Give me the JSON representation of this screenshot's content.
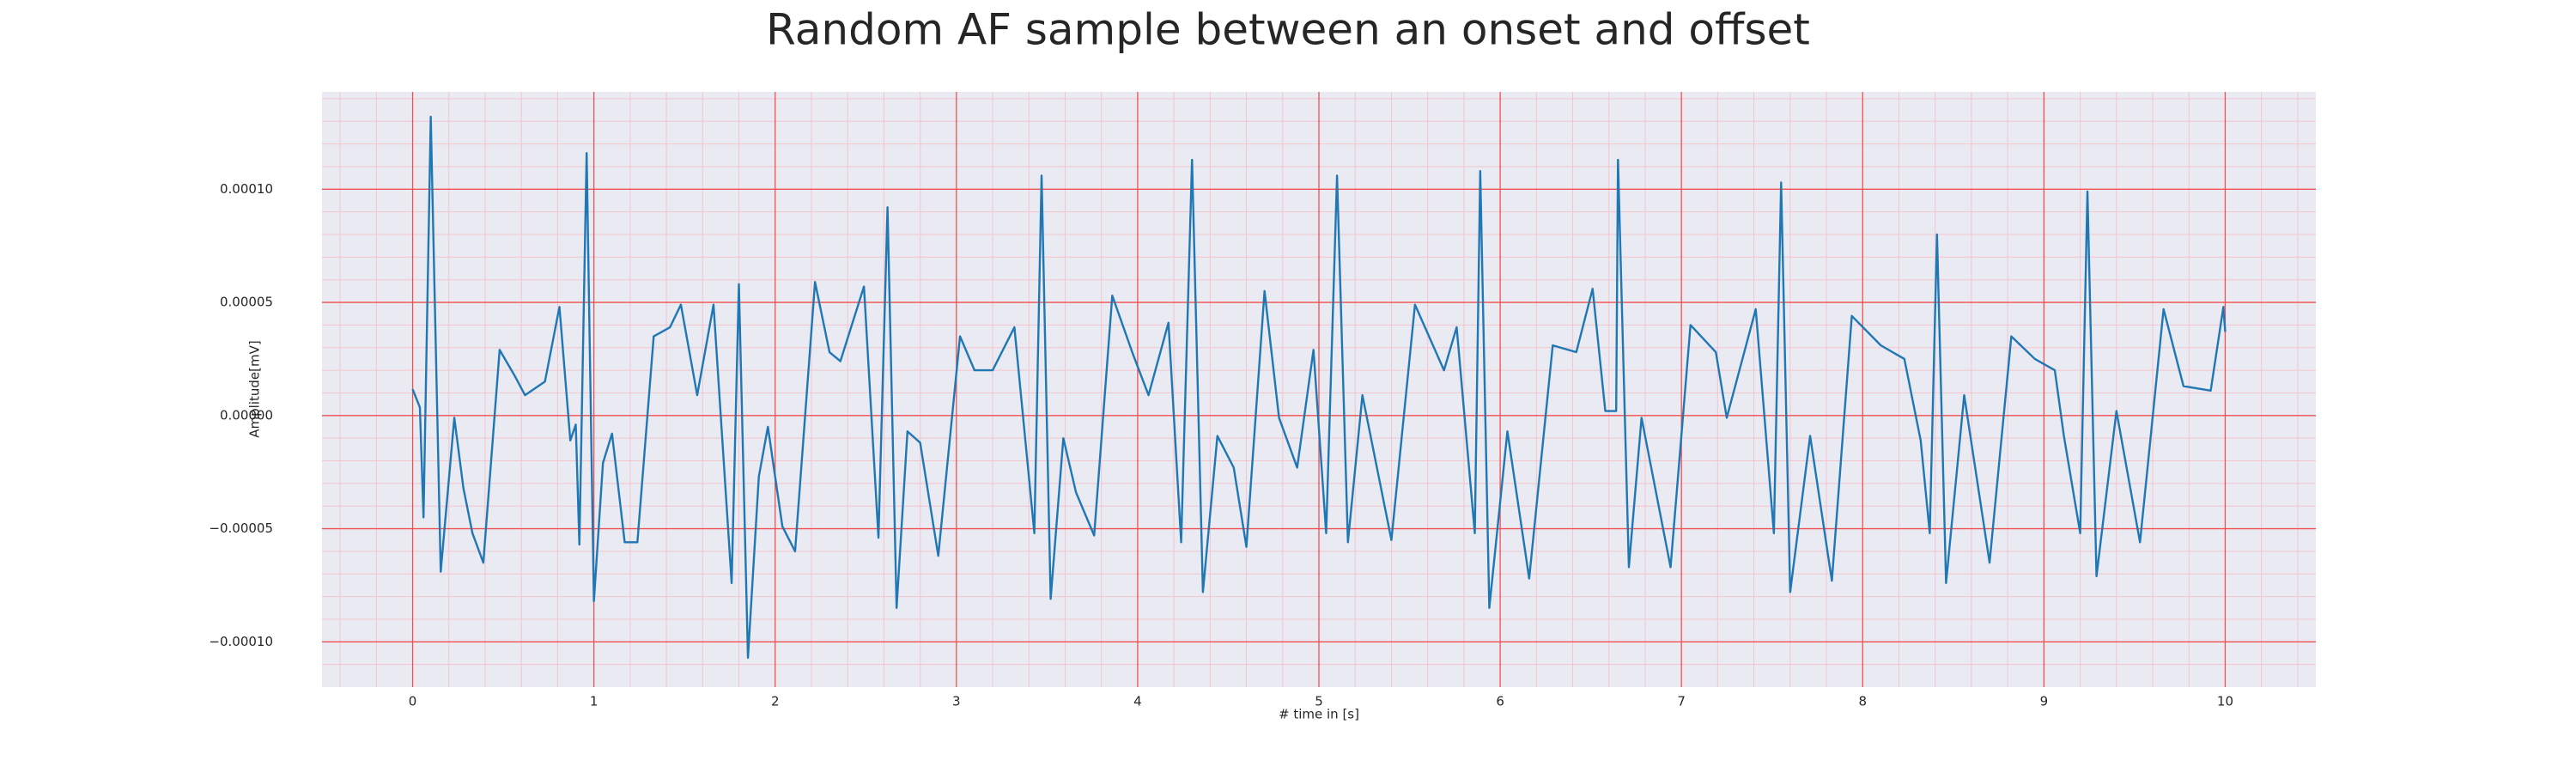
{
  "chart_data": {
    "type": "line",
    "title": "Random AF sample between an onset and offset",
    "xlabel": "# time in [s]",
    "ylabel": "Amplitude[mV]",
    "xlim": [
      -0.5,
      10.5
    ],
    "ylim": [
      -0.00012,
      0.000143
    ],
    "xticks": [
      0,
      1,
      2,
      3,
      4,
      5,
      6,
      7,
      8,
      9,
      10
    ],
    "yticks": [
      {
        "value": -0.0001,
        "label": "−0.00010"
      },
      {
        "value": -5e-05,
        "label": "−0.00005"
      },
      {
        "value": 0,
        "label": "0.00000"
      },
      {
        "value": 5e-05,
        "label": "0.00005"
      },
      {
        "value": 0.0001,
        "label": "0.00010"
      }
    ],
    "grid": true,
    "minor_grid": true,
    "background": "#eaeaf2",
    "grid_color": "#f05050",
    "minor_grid_color": "#f4c4cc",
    "series": [
      {
        "color": "#1f77b4",
        "x": [
          0,
          0.04,
          0.06,
          0.1,
          0.155,
          0.23,
          0.28,
          0.33,
          0.39,
          0.48,
          0.56,
          0.62,
          0.73,
          0.81,
          0.87,
          0.9,
          0.92,
          0.96,
          1.0,
          1.05,
          1.1,
          1.17,
          1.24,
          1.33,
          1.42,
          1.48,
          1.57,
          1.66,
          1.76,
          1.8,
          1.85,
          1.91,
          1.96,
          2.04,
          2.11,
          2.22,
          2.3,
          2.36,
          2.49,
          2.57,
          2.62,
          2.67,
          2.73,
          2.8,
          2.9,
          3.02,
          3.1,
          3.2,
          3.32,
          3.43,
          3.47,
          3.52,
          3.59,
          3.66,
          3.76,
          3.86,
          3.97,
          4.06,
          4.17,
          4.24,
          4.3,
          4.36,
          4.44,
          4.53,
          4.6,
          4.7,
          4.78,
          4.88,
          4.97,
          5.04,
          5.1,
          5.16,
          5.24,
          5.4,
          5.53,
          5.69,
          5.76,
          5.86,
          5.89,
          5.94,
          6.04,
          6.16,
          6.29,
          6.42,
          6.51,
          6.58,
          6.64,
          6.65,
          6.71,
          6.78,
          6.94,
          7.05,
          7.19,
          7.25,
          7.41,
          7.51,
          7.55,
          7.6,
          7.71,
          7.83,
          7.94,
          8.1,
          8.23,
          8.32,
          8.37,
          8.41,
          8.46,
          8.56,
          8.7,
          8.82,
          8.95,
          9.06,
          9.11,
          9.2,
          9.24,
          9.29,
          9.4,
          9.53,
          9.66,
          9.77,
          9.92,
          9.99,
          10.0
        ],
        "values": [
          1.16e-05,
          3.6e-06,
          -4.5e-05,
          0.000132,
          -6.9e-05,
          -1e-06,
          -3.2e-05,
          -5.2e-05,
          -6.5e-05,
          2.9e-05,
          1.8e-05,
          9e-06,
          1.5e-05,
          4.8e-05,
          -1.1e-05,
          -4e-06,
          -5.7e-05,
          0.000116,
          -8.2e-05,
          -2.1e-05,
          -8e-06,
          -5.6e-05,
          -5.6e-05,
          3.5e-05,
          3.9e-05,
          4.9e-05,
          9e-06,
          4.9e-05,
          -7.4e-05,
          5.8e-05,
          -0.000107,
          -2.7e-05,
          -5e-06,
          -4.9e-05,
          -6e-05,
          5.9e-05,
          2.8e-05,
          2.4e-05,
          5.7e-05,
          -5.4e-05,
          9.2e-05,
          -8.5e-05,
          -7e-06,
          -1.2e-05,
          -6.2e-05,
          3.5e-05,
          2e-05,
          2e-05,
          3.9e-05,
          -5.2e-05,
          0.000106,
          -8.1e-05,
          -1e-05,
          -3.4e-05,
          -5.3e-05,
          5.3e-05,
          2.8e-05,
          9e-06,
          4.1e-05,
          -5.6e-05,
          0.000113,
          -7.8e-05,
          -9e-06,
          -2.3e-05,
          -5.8e-05,
          5.5e-05,
          -1e-06,
          -2.3e-05,
          2.9e-05,
          -5.2e-05,
          0.000106,
          -5.6e-05,
          9e-06,
          -5.5e-05,
          4.9e-05,
          2e-05,
          3.9e-05,
          -5.2e-05,
          0.000108,
          -8.5e-05,
          -7e-06,
          -7.2e-05,
          3.1e-05,
          2.8e-05,
          5.6e-05,
          2e-06,
          2e-06,
          0.000113,
          -6.7e-05,
          -1e-06,
          -6.7e-05,
          4e-05,
          2.8e-05,
          -1e-06,
          4.7e-05,
          -5.2e-05,
          0.000103,
          -7.8e-05,
          -9e-06,
          -7.3e-05,
          4.4e-05,
          3.1e-05,
          2.5e-05,
          -1.1e-05,
          -5.2e-05,
          8e-05,
          -7.4e-05,
          9e-06,
          -6.5e-05,
          3.5e-05,
          2.5e-05,
          2e-05,
          -9e-06,
          -5.2e-05,
          9.9e-05,
          -7.1e-05,
          2e-06,
          -5.6e-05,
          4.7e-05,
          1.3e-05,
          1.1e-05,
          4.8e-05,
          3.7e-05
        ]
      }
    ]
  }
}
